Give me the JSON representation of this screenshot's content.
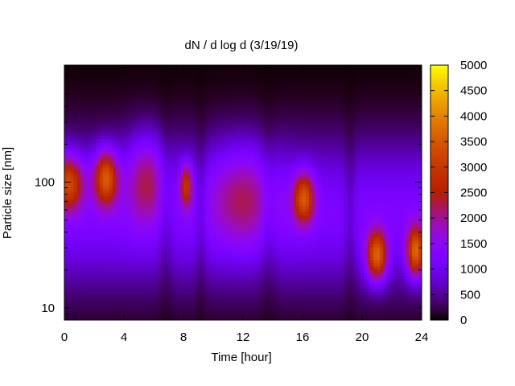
{
  "chart_data": {
    "type": "heatmap",
    "title": "dN / d log d (3/19/19)",
    "xlabel": "Time [hour]",
    "ylabel": "Particle size [nm]",
    "xlim": [
      0,
      24
    ],
    "ylim": [
      8,
      850
    ],
    "y_scale": "log",
    "x_ticks": [
      0,
      4,
      8,
      12,
      16,
      20,
      24
    ],
    "y_ticks": [
      10,
      100
    ],
    "colorbar": {
      "min": 0,
      "max": 5000,
      "ticks": [
        0,
        500,
        1000,
        1500,
        2000,
        2500,
        3000,
        3500,
        4000,
        4500,
        5000
      ],
      "palette": "gnuplot pm3d (black-purple-red-orange-yellow)"
    },
    "grid": false,
    "background_level": 1200,
    "features": [
      {
        "time": 0.3,
        "size_nm": 100,
        "peak": 3000,
        "time_width": 1.0,
        "log_size_width": 0.22
      },
      {
        "time": 2.8,
        "size_nm": 110,
        "peak": 3300,
        "time_width": 0.8,
        "log_size_width": 0.22
      },
      {
        "time": 5.5,
        "size_nm": 110,
        "peak": 2000,
        "time_width": 1.3,
        "log_size_width": 0.35
      },
      {
        "time": 8.2,
        "size_nm": 95,
        "peak": 2600,
        "time_width": 0.4,
        "log_size_width": 0.17
      },
      {
        "time": 12.0,
        "size_nm": 80,
        "peak": 1800,
        "time_width": 2.2,
        "log_size_width": 0.4
      },
      {
        "time": 16.1,
        "size_nm": 75,
        "peak": 3100,
        "time_width": 0.7,
        "log_size_width": 0.2
      },
      {
        "time": 21.0,
        "size_nm": 26,
        "peak": 3500,
        "time_width": 0.7,
        "log_size_width": 0.2
      },
      {
        "time": 23.6,
        "size_nm": 28,
        "peak": 3500,
        "time_width": 0.6,
        "log_size_width": 0.2
      }
    ]
  }
}
